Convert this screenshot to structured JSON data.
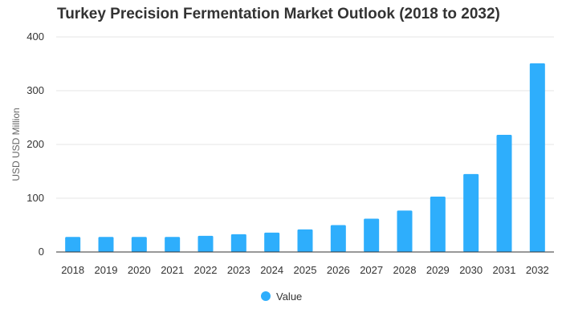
{
  "chart_data": {
    "type": "bar",
    "title": "Turkey Precision Fermentation Market Outlook (2018 to 2032)",
    "xlabel": "",
    "ylabel": "USD USD Million",
    "categories": [
      "2018",
      "2019",
      "2020",
      "2021",
      "2022",
      "2023",
      "2024",
      "2025",
      "2026",
      "2027",
      "2028",
      "2029",
      "2030",
      "2031",
      "2032"
    ],
    "series": [
      {
        "name": "Value",
        "values": [
          28,
          28,
          28,
          28,
          30,
          33,
          36,
          42,
          50,
          62,
          77,
          103,
          145,
          218,
          351
        ]
      }
    ],
    "ylim": [
      0,
      400
    ],
    "yticks": [
      0,
      100,
      200,
      300,
      400
    ],
    "grid": true,
    "legend_position": "bottom-center",
    "colors": {
      "bar": "#2eaefc",
      "grid": "#e6e6e6",
      "axis": "#333333"
    }
  }
}
